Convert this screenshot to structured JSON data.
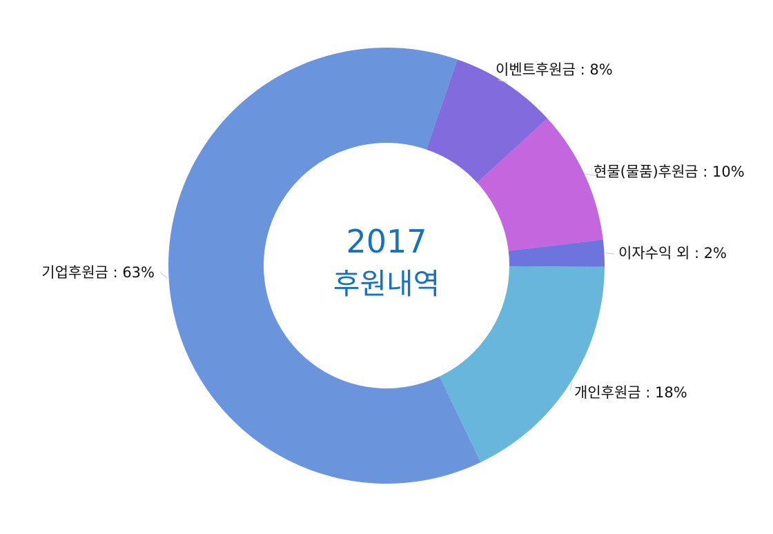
{
  "center": {
    "year": "2017",
    "caption": "후원내역"
  },
  "chart_data": {
    "type": "pie",
    "variant": "donut",
    "title": "",
    "slices": [
      {
        "label": "이벤트후원금",
        "value": 8,
        "display": "이벤트후원금 : 8%",
        "color": "#816bdd"
      },
      {
        "label": "현물(물품)후원금",
        "value": 10,
        "display": "현물(물품)후원금 : 10%",
        "color": "#c466de"
      },
      {
        "label": "이자수익 외",
        "value": 2,
        "display": "이자수익 외 : 2%",
        "color": "#6d74de"
      },
      {
        "label": "개인후원금",
        "value": 18,
        "display": "개인후원금 : 18%",
        "color": "#68b6dc"
      },
      {
        "label": "기업후원금",
        "value": 63,
        "display": "기업후원금 : 63%",
        "color": "#6a95dd"
      }
    ],
    "start_angle_deg": 19,
    "legend": "none",
    "labels": "outside"
  }
}
